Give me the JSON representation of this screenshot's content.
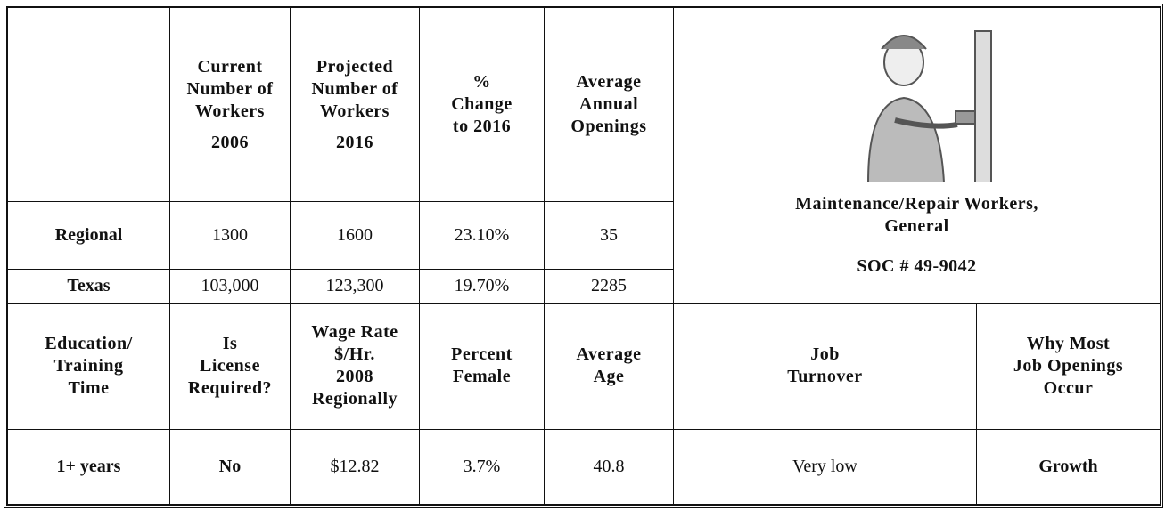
{
  "headers": [
    [
      "Current",
      "Number of",
      "Workers",
      "2006"
    ],
    [
      "Projected",
      "Number of",
      "Workers",
      "2016"
    ],
    [
      "%",
      "Change",
      "to 2016"
    ],
    [
      "Average",
      "Annual",
      "Openings"
    ]
  ],
  "rows": [
    {
      "label": "Regional",
      "cells": [
        "1300",
        "1600",
        "23.10%",
        "35"
      ]
    },
    {
      "label": "Texas",
      "cells": [
        "103,000",
        "123,300",
        "19.70%",
        "2285"
      ]
    }
  ],
  "occupation": {
    "title": [
      "Maintenance/Repair Workers,",
      "General"
    ],
    "soc": "SOC # 49-9042"
  },
  "bottom_headers": [
    [
      "Education/",
      "Training",
      "Time"
    ],
    [
      "Is",
      "License",
      "Required?"
    ],
    [
      "Wage Rate",
      "$/Hr.",
      "2008",
      "Regionally"
    ],
    [
      "Percent",
      "Female"
    ],
    [
      "Average",
      "Age"
    ],
    [
      "Job",
      "Turnover"
    ],
    [
      "Why Most",
      "Job Openings",
      "Occur"
    ]
  ],
  "bottom_row": [
    "1+ years",
    "No",
    "$12.82",
    "3.7%",
    "40.8",
    "Very low",
    "Growth"
  ]
}
